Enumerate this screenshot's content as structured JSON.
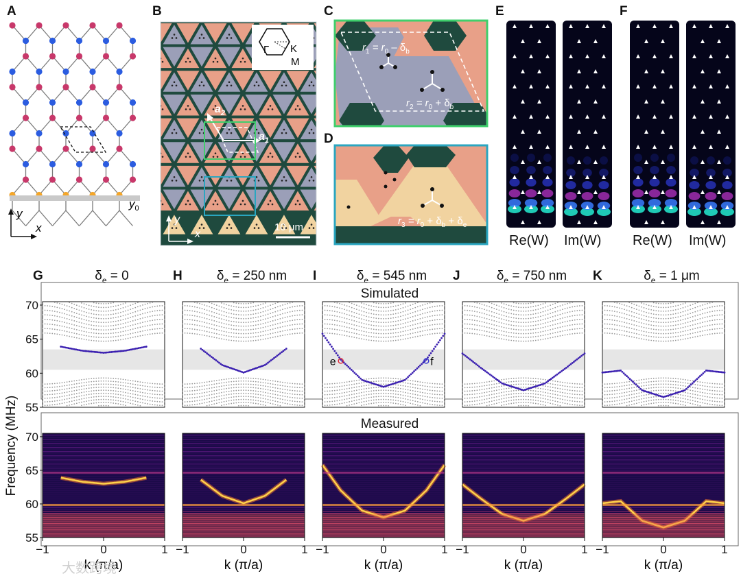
{
  "panel_labels": {
    "A": "A",
    "B": "B",
    "C": "C",
    "D": "D",
    "E": "E",
    "F": "F",
    "G": "G",
    "H": "H",
    "I": "I",
    "J": "J",
    "K": "K"
  },
  "panel_a": {
    "y_label": "y",
    "x_label": "x",
    "y0_label": "y",
    "y0_sub": "0"
  },
  "panel_b": {
    "bz": {
      "gamma": "Γ",
      "k": "K",
      "m": "M"
    },
    "a2": "a",
    "a2_sub": "2",
    "a1": "a",
    "a1_sub": "1",
    "y_label": "y",
    "x_label": "x",
    "scale_bar": "10 μm"
  },
  "panel_c": {
    "r1": "r",
    "r1_sub": "1",
    "r1_rest": " = r",
    "r1_sub2": "0",
    "r1_end": " – δ",
    "r1_sub3": "b",
    "r2": "r",
    "r2_sub": "2",
    "r2_rest": " = r",
    "r2_sub2": "0",
    "r2_end": " + δ",
    "r2_sub3": "b"
  },
  "panel_d": {
    "r3": "r",
    "r3_sub": "3",
    "r3_rest": " = r",
    "r3_sub2": "0",
    "r3_mid": " + δ",
    "r3_sub3": "b",
    "r3_end": " + δ",
    "r3_sub4": "e"
  },
  "panel_ef": {
    "re": "Re(W)",
    "im": "Im(W)"
  },
  "delta_titles": [
    {
      "delta": "δ",
      "sub": "e",
      "value": " = 0"
    },
    {
      "delta": "δ",
      "sub": "e",
      "value": " = 250 nm"
    },
    {
      "delta": "δ",
      "sub": "e",
      "value": " = 545 nm"
    },
    {
      "delta": "δ",
      "sub": "e",
      "value": " = 750 nm"
    },
    {
      "delta": "δ",
      "sub": "e",
      "value": " = 1 μm"
    }
  ],
  "sim_label": "Simulated",
  "meas_label": "Measured",
  "y_axis_label": "Frequency (MHz)",
  "x_axis_label": "k (π/a)",
  "markers": {
    "e": "e",
    "f": "f"
  },
  "watermark": "大数跨境",
  "colors": {
    "blue_site": "#2b5ce0",
    "red_site": "#c8386a",
    "orange_site": "#f4a629",
    "edge_dot": "#3a1fb0",
    "bulk_dot": "#9a9a9a",
    "gap_band": "#e6e6e6"
  },
  "chart_data": [
    {
      "type": "scatter",
      "title": "Simulated",
      "ylabel": "Frequency (MHz)",
      "xlabel": "k (π/a)",
      "x_ticks": [
        -1,
        0,
        1
      ],
      "y_ticks": [
        55,
        60,
        65,
        70
      ],
      "ylim": [
        55,
        70.5
      ],
      "xlim": [
        -1,
        1
      ],
      "bandgap": [
        60.5,
        63.5
      ],
      "edge_states": [
        {
          "delta_e": "0",
          "k": [
            -0.7,
            -0.35,
            0,
            0.35,
            0.7
          ],
          "f": [
            63.9,
            63.3,
            63.0,
            63.3,
            63.9
          ]
        },
        {
          "delta_e": "250 nm",
          "k": [
            -0.7,
            -0.35,
            0,
            0.35,
            0.7
          ],
          "f": [
            63.6,
            61.2,
            60.1,
            61.2,
            63.6
          ]
        },
        {
          "delta_e": "545 nm",
          "k": [
            -1,
            -0.7,
            -0.35,
            0,
            0.35,
            0.7,
            1
          ],
          "f": [
            65.8,
            62.0,
            59.0,
            58.0,
            59.0,
            62.0,
            65.8
          ]
        },
        {
          "delta_e": "750 nm",
          "k": [
            -1,
            -0.7,
            -0.35,
            0,
            0.35,
            0.7,
            1
          ],
          "f": [
            62.9,
            60.8,
            58.5,
            57.5,
            58.5,
            60.8,
            62.9
          ]
        },
        {
          "delta_e": "1 μm",
          "k": [
            -1,
            -0.7,
            -0.35,
            0,
            0.35,
            0.7,
            1
          ],
          "f": [
            60.1,
            60.4,
            57.5,
            56.5,
            57.5,
            60.4,
            60.1
          ]
        }
      ]
    },
    {
      "type": "heatmap",
      "title": "Measured",
      "ylabel": "Frequency (MHz)",
      "xlabel": "k (π/a)",
      "x_ticks": [
        -1,
        0,
        1
      ],
      "y_ticks": [
        55,
        60,
        65,
        70
      ],
      "ylim": [
        55,
        70.5
      ],
      "xlim": [
        -1,
        1
      ]
    }
  ]
}
